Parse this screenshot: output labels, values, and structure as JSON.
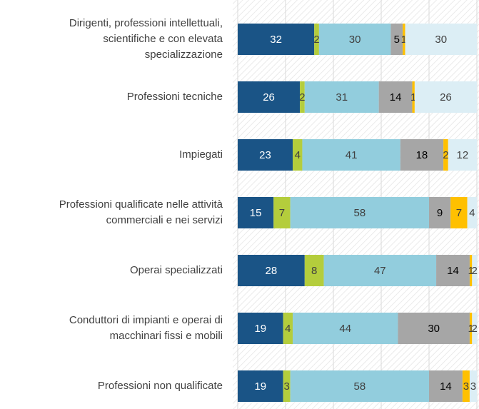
{
  "chart_data": {
    "type": "bar",
    "orientation": "horizontal",
    "stacked": true,
    "categories": [
      "Dirigenti, professioni intellettuali,\nscientifiche e con elevata\nspecializzazione",
      "Professioni tecniche",
      "Impiegati",
      "Professioni qualificate nelle attività\ncommerciali e nei servizi",
      "Operai specializzati",
      "Conduttori di impianti e operai di\nmacchinari fissi e mobili",
      "Professioni non qualificate"
    ],
    "series": [
      {
        "color": "#1a5486",
        "values": [
          32,
          26,
          23,
          15,
          28,
          19,
          19
        ]
      },
      {
        "color": "#b4cd3c",
        "values": [
          2,
          2,
          4,
          7,
          8,
          4,
          3
        ]
      },
      {
        "color": "#92cddd",
        "values": [
          30,
          31,
          41,
          58,
          47,
          44,
          58
        ]
      },
      {
        "color": "#a6a6a6",
        "values": [
          5,
          14,
          18,
          9,
          14,
          30,
          14
        ]
      },
      {
        "color": "#ffc000",
        "values": [
          1,
          1,
          2,
          7,
          1,
          1,
          3
        ]
      },
      {
        "color": "#dceef5",
        "values": [
          30,
          26,
          12,
          4,
          2,
          2,
          3
        ]
      }
    ],
    "xlim": [
      0,
      100
    ],
    "xticks": [
      0,
      20,
      40,
      60,
      80,
      100
    ],
    "grid": true
  }
}
